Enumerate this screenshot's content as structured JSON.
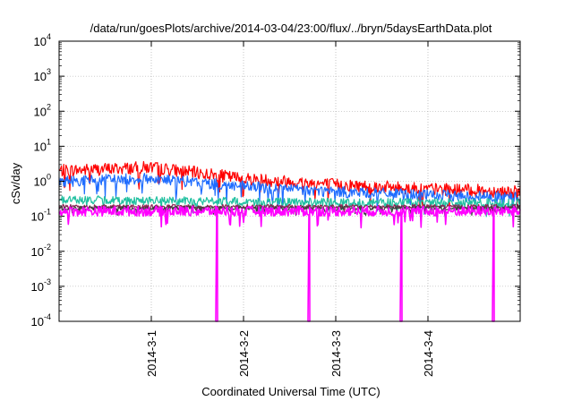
{
  "chart_data": {
    "type": "line",
    "title": "/data/run/goesPlots/archive/2014-03-04/23:00/flux/../bryn/5daysEarthData.plot",
    "xlabel": "Coordinated Universal Time (UTC)",
    "ylabel": "cSv/day",
    "yscale": "log",
    "ylim": [
      0.0001,
      10000
    ],
    "yticks": [
      {
        "value": 0.0001,
        "base": "10",
        "exp": "-4"
      },
      {
        "value": 0.001,
        "base": "10",
        "exp": "-3"
      },
      {
        "value": 0.01,
        "base": "10",
        "exp": "-2"
      },
      {
        "value": 0.1,
        "base": "10",
        "exp": "-1"
      },
      {
        "value": 1,
        "base": "10",
        "exp": "0"
      },
      {
        "value": 10,
        "base": "10",
        "exp": "1"
      },
      {
        "value": 100,
        "base": "10",
        "exp": "2"
      },
      {
        "value": 1000,
        "base": "10",
        "exp": "3"
      },
      {
        "value": 10000,
        "base": "10",
        "exp": "4"
      }
    ],
    "xlim": [
      "2014-02-28",
      "2014-03-05"
    ],
    "xticks": [
      "2014-3-1",
      "2014-3-2",
      "2014-3-3",
      "2014-3-4"
    ],
    "grid": true,
    "legend": "none",
    "series": [
      {
        "color": "#ff0000",
        "x": [
          "2014-02-28",
          "2014-03-01",
          "2014-03-02",
          "2014-03-03",
          "2014-03-04",
          "2014-03-05"
        ],
        "y": [
          2.0,
          2.5,
          1.2,
          0.8,
          0.6,
          0.5
        ]
      },
      {
        "color": "#1e6cff",
        "x": [
          "2014-02-28",
          "2014-03-01",
          "2014-03-02",
          "2014-03-03",
          "2014-03-04",
          "2014-03-05"
        ],
        "y": [
          1.0,
          1.2,
          0.7,
          0.5,
          0.4,
          0.35
        ]
      },
      {
        "color": "#20c0a0",
        "x": [
          "2014-02-28",
          "2014-03-01",
          "2014-03-02",
          "2014-03-03",
          "2014-03-04",
          "2014-03-05"
        ],
        "y": [
          0.3,
          0.28,
          0.26,
          0.25,
          0.25,
          0.24
        ]
      },
      {
        "color": "#8b2252",
        "x": [
          "2014-02-28",
          "2014-03-01",
          "2014-03-02",
          "2014-03-03",
          "2014-03-04",
          "2014-03-05"
        ],
        "y": [
          0.19,
          0.19,
          0.19,
          0.19,
          0.19,
          0.19
        ]
      },
      {
        "color": "#404040",
        "x": [
          "2014-02-28",
          "2014-03-01",
          "2014-03-02",
          "2014-03-03",
          "2014-03-04",
          "2014-03-05"
        ],
        "y": [
          0.17,
          0.17,
          0.17,
          0.17,
          0.17,
          0.17
        ]
      },
      {
        "color": "#ff00ff",
        "x": [
          "2014-02-28",
          "2014-03-01",
          "2014-03-02",
          "2014-03-03",
          "2014-03-04",
          "2014-03-05"
        ],
        "y": [
          0.14,
          0.14,
          0.14,
          0.14,
          0.14,
          0.14
        ],
        "dropouts": [
          "2014-03-01T17:00",
          "2014-03-02T17:00",
          "2014-03-03T17:00",
          "2014-03-04T17:00"
        ]
      }
    ]
  }
}
